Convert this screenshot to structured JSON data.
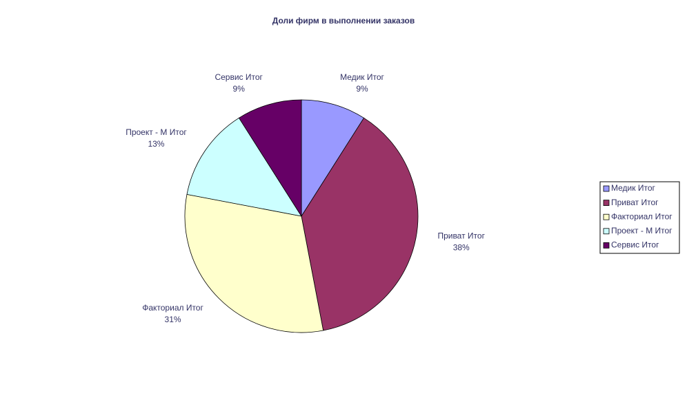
{
  "chart_data": {
    "type": "pie",
    "title": "Доли фирм в выполнении заказов",
    "categories": [
      "Медик Итог",
      "Приват Итог",
      "Факториал Итог",
      "Проект - М Итог",
      "Сервис Итог"
    ],
    "values": [
      9,
      38,
      31,
      13,
      9
    ],
    "value_labels": [
      "9%",
      "38%",
      "31%",
      "13%",
      "9%"
    ],
    "colors": [
      "#9999ff",
      "#993366",
      "#ffffcc",
      "#ccffff",
      "#660066"
    ],
    "legend": "right"
  }
}
